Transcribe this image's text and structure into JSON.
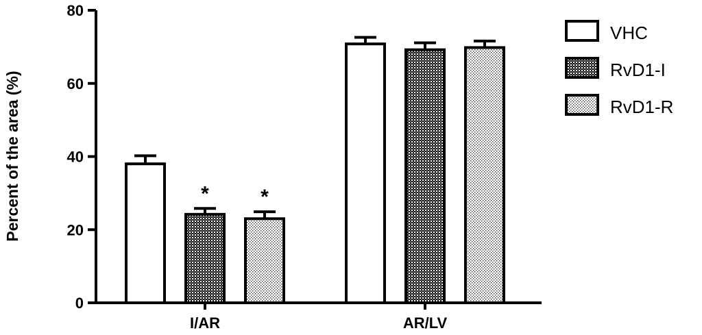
{
  "chart_data": {
    "type": "bar",
    "title": "",
    "xlabel": "",
    "ylabel": "Percent of the area (%)",
    "ylim": [
      0,
      80
    ],
    "yticks": [
      0,
      20,
      40,
      60,
      80
    ],
    "categories": [
      "I/AR",
      "AR/LV"
    ],
    "series": [
      {
        "name": "VHC",
        "values": [
          38.0,
          70.8
        ],
        "errors": [
          2.2,
          1.8
        ],
        "pattern": "none",
        "fill": "#ffffff"
      },
      {
        "name": "RvD1-I",
        "values": [
          24.2,
          69.2
        ],
        "errors": [
          1.6,
          1.9
        ],
        "pattern": "dense-check",
        "fill": "#3a3a3a"
      },
      {
        "name": "RvD1-R",
        "values": [
          23.0,
          69.8
        ],
        "errors": [
          1.9,
          1.8
        ],
        "pattern": "light-dots",
        "fill": "#dcdcdc"
      }
    ],
    "annotations": [
      {
        "category": "I/AR",
        "series": "RvD1-I",
        "text": "*"
      },
      {
        "category": "I/AR",
        "series": "RvD1-R",
        "text": "*"
      }
    ],
    "grid": false,
    "legend_position": "right"
  }
}
